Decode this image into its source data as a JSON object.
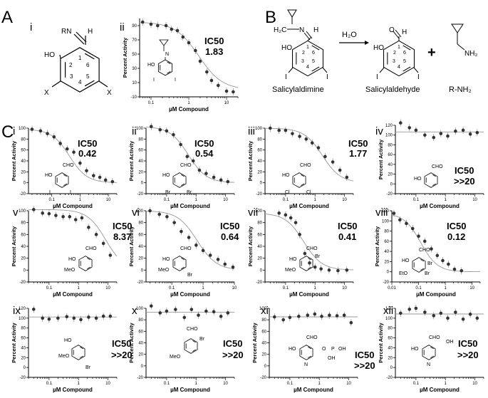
{
  "panel_labels": {
    "A": "A",
    "B": "B",
    "C": "C"
  },
  "A": {
    "i": {
      "label": "i",
      "atoms": {
        "imine": "RN",
        "h": "H",
        "oh": "HO",
        "x_left": "X",
        "x_right": "X"
      },
      "ring_numbers": [
        "1",
        "2",
        "3",
        "4",
        "5",
        "6"
      ]
    },
    "ii": {
      "label": "ii",
      "ic50_title": "IC50",
      "ic50_value": "1.83",
      "atoms": {
        "oh": "HO",
        "i_left": "I",
        "i_right": "I",
        "n": "N"
      }
    }
  },
  "B": {
    "atoms": {
      "imine": "H₂C",
      "n": "N",
      "h": "H",
      "oh": "HO",
      "i": "I",
      "ald_o": "O",
      "ald_h": "H",
      "amine": "NH₂"
    },
    "ring_numbers": [
      "1",
      "2",
      "3",
      "4",
      "5",
      "6"
    ],
    "reagent": "H₂O",
    "plus": "+",
    "names": [
      "Salicylaldimine",
      "Salicylaldehyde",
      "R-NH₂"
    ]
  },
  "C": {
    "i": {
      "label": "i",
      "ic50_title": "IC50",
      "ic50_value": "0.42",
      "atoms": [
        "CHO",
        "HO",
        "I",
        "I"
      ]
    },
    "ii": {
      "label": "ii",
      "ic50_title": "IC50",
      "ic50_value": "0.54",
      "atoms": [
        "CHO",
        "HO",
        "Br",
        "Br"
      ]
    },
    "iii": {
      "label": "iii",
      "ic50_title": "IC50",
      "ic50_value": "1.77",
      "atoms": [
        "CHO",
        "HO",
        "Cl",
        "Cl"
      ]
    },
    "iv": {
      "label": "iv",
      "ic50_title": "IC50",
      "ic50_value": ">>20",
      "atoms": [
        "CHO",
        "HO"
      ]
    },
    "v": {
      "label": "v",
      "ic50_title": "IC50",
      "ic50_value": "8.37",
      "atoms": [
        "CHO",
        "HO",
        "MeO"
      ]
    },
    "vi": {
      "label": "vi",
      "ic50_title": "IC50",
      "ic50_value": "0.64",
      "atoms": [
        "CHO",
        "HO",
        "MeO",
        "Br"
      ]
    },
    "vii": {
      "label": "vii",
      "ic50_title": "IC50",
      "ic50_value": "0.41",
      "atoms": [
        "CHO",
        "HO",
        "Br",
        "MeO",
        "Br"
      ]
    },
    "viii": {
      "label": "viii",
      "ic50_title": "IC50",
      "ic50_value": "0.12",
      "atoms": [
        "CHO",
        "HO",
        "Br",
        "EtO",
        "Br"
      ]
    },
    "ix": {
      "label": "ix",
      "ic50_title": "IC50",
      "ic50_value": ">>20",
      "atoms": [
        "HO",
        "MeO",
        "Br"
      ]
    },
    "x": {
      "label": "x",
      "ic50_title": "IC50",
      "ic50_value": ">>20",
      "atoms": [
        "CHO",
        "Br",
        "MeO"
      ]
    },
    "xi": {
      "label": "xi",
      "ic50_title": "IC50",
      "ic50_value": ">>20",
      "atoms": [
        "CHO",
        "HO",
        "N",
        "O",
        "P",
        "OH",
        "OH"
      ]
    },
    "xii": {
      "label": "xii",
      "ic50_title": "IC50",
      "ic50_value": ">>20",
      "atoms": [
        "CHO",
        "HO",
        "N",
        "OH"
      ]
    }
  },
  "chart_data": [
    {
      "id": "A-ii",
      "type": "scatter",
      "xlabel": "µM Compound",
      "ylabel": "Percent Activity",
      "x_scale": "log",
      "xlim": [
        0.05,
        20
      ],
      "ylim": [
        -10,
        100
      ],
      "yticks": [
        90,
        70,
        50,
        30,
        10,
        -10
      ],
      "xticklabels": [
        "0.1",
        "1",
        "10"
      ],
      "x": [
        0.06,
        0.1,
        0.15,
        0.25,
        0.35,
        0.5,
        0.7,
        1,
        1.5,
        2,
        3,
        4,
        6,
        10,
        15
      ],
      "y": [
        95,
        92,
        90,
        90,
        85,
        83,
        74,
        66,
        55,
        40,
        25,
        13,
        6,
        -2,
        -3
      ],
      "fit_ic50": 1.83
    },
    {
      "id": "C-i",
      "type": "scatter",
      "xlabel": "µM Compound",
      "ylabel": "Percent Activity",
      "x_scale": "log",
      "xlim": [
        0.015,
        20
      ],
      "ylim": [
        -20,
        100
      ],
      "yticks": [
        100,
        80,
        60,
        40,
        20,
        0,
        -20
      ],
      "xticklabels": [
        "0.1",
        "1",
        "10"
      ],
      "x": [
        0.02,
        0.04,
        0.07,
        0.12,
        0.2,
        0.35,
        0.6,
        1,
        1.7,
        3,
        5,
        8,
        14
      ],
      "y": [
        98,
        95,
        90,
        84,
        72,
        62,
        56,
        36,
        22,
        13,
        10,
        5,
        2
      ],
      "fit_ic50": 0.42
    },
    {
      "id": "C-ii",
      "type": "scatter",
      "xlabel": "µM Compound",
      "ylabel": "Percent Activity",
      "x_scale": "log",
      "xlim": [
        0.02,
        20
      ],
      "ylim": [
        -20,
        100
      ],
      "yticks": [
        100,
        80,
        60,
        40,
        20,
        0,
        -20
      ],
      "xticklabels": [
        "0.1",
        "1",
        "10"
      ],
      "x": [
        0.03,
        0.06,
        0.1,
        0.17,
        0.3,
        0.5,
        0.8,
        1.3,
        2.2,
        4,
        7,
        12
      ],
      "y": [
        103,
        97,
        95,
        88,
        70,
        48,
        40,
        23,
        17,
        10,
        5,
        2
      ],
      "fit_ic50": 0.54
    },
    {
      "id": "C-iii",
      "type": "scatter",
      "xlabel": "µM Compound",
      "ylabel": "Percent Activity",
      "x_scale": "log",
      "xlim": [
        0.02,
        20
      ],
      "ylim": [
        -20,
        100
      ],
      "yticks": [
        100,
        80,
        60,
        40,
        20,
        0,
        -20
      ],
      "xticklabels": [
        "0.1",
        "1",
        "10"
      ],
      "x": [
        0.03,
        0.06,
        0.1,
        0.17,
        0.3,
        0.5,
        0.8,
        1.3,
        2.2,
        4,
        7,
        12
      ],
      "y": [
        100,
        96,
        96,
        90,
        85,
        80,
        73,
        64,
        48,
        38,
        23,
        10
      ],
      "fit_ic50": 1.77
    },
    {
      "id": "C-iv",
      "type": "scatter",
      "xlabel": "µM Compound",
      "ylabel": "Percent Activity",
      "x_scale": "log",
      "xlim": [
        0.02,
        20
      ],
      "ylim": [
        -20,
        120
      ],
      "yticks": [
        120,
        100,
        80,
        60,
        40,
        20,
        0,
        -20
      ],
      "xticklabels": [
        "0.1",
        "1",
        "10"
      ],
      "x": [
        0.03,
        0.06,
        0.1,
        0.2,
        0.4,
        0.7,
        1.2,
        2.2,
        4,
        7,
        12
      ],
      "y": [
        125,
        115,
        110,
        100,
        95,
        103,
        98,
        108,
        110,
        102,
        105
      ],
      "fit": "flat"
    },
    {
      "id": "C-v",
      "type": "scatter",
      "xlabel": "µM Compound",
      "ylabel": "Percent Activity",
      "x_scale": "log",
      "xlim": [
        0.02,
        20
      ],
      "ylim": [
        -20,
        100
      ],
      "yticks": [
        100,
        80,
        60,
        40,
        20,
        0,
        -20
      ],
      "xticklabels": [
        "0.1",
        "1",
        "10"
      ],
      "x": [
        0.03,
        0.06,
        0.1,
        0.17,
        0.3,
        0.5,
        0.8,
        1.3,
        2.2,
        4,
        7,
        12
      ],
      "y": [
        102,
        96,
        95,
        92,
        90,
        90,
        85,
        88,
        72,
        60,
        45,
        25
      ],
      "fit_ic50": 8.37
    },
    {
      "id": "C-vi",
      "type": "scatter",
      "xlabel": "µM Compound",
      "ylabel": "Percent Activity",
      "x_scale": "log",
      "xlim": [
        0.015,
        10
      ],
      "ylim": [
        -20,
        100
      ],
      "yticks": [
        100,
        80,
        60,
        40,
        20,
        0,
        -20
      ],
      "xticklabels": [
        "0.1",
        "1",
        "10"
      ],
      "x": [
        0.02,
        0.04,
        0.07,
        0.12,
        0.2,
        0.35,
        0.6,
        1,
        1.7,
        3,
        5,
        9
      ],
      "y": [
        100,
        94,
        90,
        80,
        65,
        55,
        42,
        33,
        25,
        18,
        10,
        5
      ],
      "fit_ic50": 0.64
    },
    {
      "id": "C-vii",
      "type": "scatter",
      "xlabel": "µM Compound",
      "ylabel": "Percent Activity",
      "x_scale": "log",
      "xlim": [
        0.02,
        20
      ],
      "ylim": [
        -20,
        100
      ],
      "yticks": [
        100,
        80,
        60,
        40,
        20,
        0,
        -20
      ],
      "xticklabels": [
        "0.1",
        "1",
        "10"
      ],
      "x": [
        0.06,
        0.1,
        0.15,
        0.22,
        0.3,
        0.45,
        0.65,
        1,
        1.6,
        3,
        6,
        12
      ],
      "y": [
        96,
        93,
        88,
        80,
        60,
        28,
        12,
        5,
        2,
        0,
        -1,
        0
      ],
      "fit_ic50": 0.41
    },
    {
      "id": "C-viii",
      "type": "scatter",
      "xlabel": "µM Compound",
      "ylabel": "Percent Activity",
      "x_scale": "log",
      "xlim": [
        0.01,
        20
      ],
      "ylim": [
        -20,
        120
      ],
      "yticks": [
        120,
        100,
        80,
        60,
        40,
        20,
        0,
        -20
      ],
      "xticklabels": [
        "0.01",
        "0.1",
        "1",
        "10"
      ],
      "x": [
        0.012,
        0.02,
        0.035,
        0.06,
        0.1,
        0.17,
        0.3,
        0.5,
        0.8,
        1.3,
        2.2,
        4
      ],
      "y": [
        115,
        102,
        95,
        85,
        70,
        60,
        45,
        32,
        22,
        15,
        5,
        2
      ],
      "fit_ic50": 0.12
    },
    {
      "id": "C-ix",
      "type": "scatter",
      "xlabel": "µM Compound",
      "ylabel": "Percent Activity",
      "x_scale": "log",
      "xlim": [
        0.02,
        20
      ],
      "ylim": [
        -20,
        120
      ],
      "yticks": [
        120,
        100,
        80,
        60,
        40,
        20,
        0,
        -20
      ],
      "xticklabels": [
        "0.1",
        "1",
        "10"
      ],
      "x": [
        0.03,
        0.06,
        0.1,
        0.2,
        0.4,
        0.7,
        1.2,
        2.2,
        4,
        7,
        12
      ],
      "y": [
        118,
        100,
        98,
        100,
        103,
        100,
        97,
        102,
        100,
        104,
        104
      ],
      "fit": "flat"
    },
    {
      "id": "C-x",
      "type": "scatter",
      "xlabel": "µM Compound",
      "ylabel": "Percent Activity",
      "x_scale": "log",
      "xlim": [
        0.02,
        20
      ],
      "ylim": [
        -20,
        100
      ],
      "yticks": [
        100,
        80,
        60,
        40,
        20,
        0,
        -20
      ],
      "xticklabels": [
        "0.1",
        "1",
        "10"
      ],
      "x": [
        0.03,
        0.06,
        0.1,
        0.2,
        0.4,
        0.7,
        1.2,
        2.2,
        4,
        7,
        12
      ],
      "y": [
        104,
        92,
        95,
        98,
        84,
        98,
        88,
        95,
        94,
        86,
        92
      ],
      "fit": "flat"
    },
    {
      "id": "C-xi",
      "type": "scatter",
      "xlabel": "µM Compound",
      "ylabel": "Percent Activity",
      "x_scale": "log",
      "xlim": [
        0.02,
        20
      ],
      "ylim": [
        -20,
        100
      ],
      "yticks": [
        100,
        80,
        60,
        40,
        20,
        0,
        -20
      ],
      "xticklabels": [
        "0.1",
        "1",
        "10"
      ],
      "x": [
        0.03,
        0.06,
        0.1,
        0.2,
        0.4,
        0.7,
        1.2,
        2.2,
        4,
        7,
        12
      ],
      "y": [
        85,
        80,
        84,
        86,
        88,
        90,
        86,
        88,
        87,
        88,
        75
      ],
      "fit": "flat"
    },
    {
      "id": "C-xii",
      "type": "scatter",
      "xlabel": "µM Compound",
      "ylabel": "Percent Activity",
      "x_scale": "log",
      "xlim": [
        0.02,
        20
      ],
      "ylim": [
        -20,
        120
      ],
      "yticks": [
        120,
        100,
        80,
        60,
        40,
        20,
        0,
        -20
      ],
      "xticklabels": [
        "0.1",
        "1",
        "10"
      ],
      "x": [
        0.03,
        0.06,
        0.1,
        0.2,
        0.4,
        0.7,
        1.2,
        2.2,
        4,
        7,
        12
      ],
      "y": [
        110,
        118,
        120,
        112,
        105,
        110,
        100,
        112,
        98,
        108,
        100
      ],
      "fit": "flat"
    }
  ]
}
